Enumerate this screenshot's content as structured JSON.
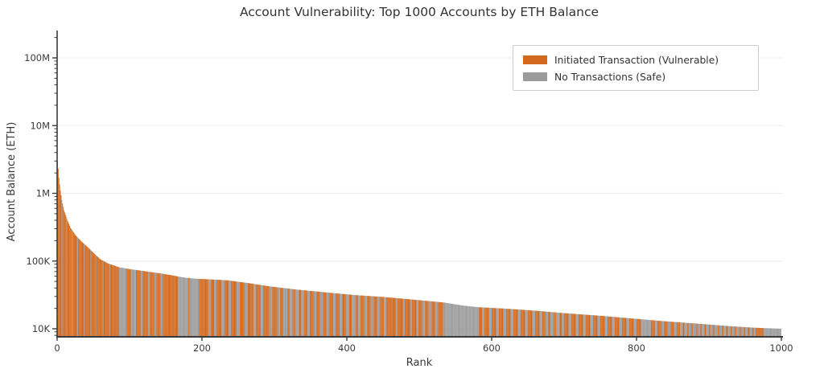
{
  "chart_data": {
    "type": "bar",
    "title": "Account Vulnerability: Top 1000 Accounts by ETH Balance",
    "xlabel": "Rank",
    "ylabel": "Account Balance (ETH)",
    "y_scale": "log",
    "xlim": [
      0,
      1000
    ],
    "ylim": [
      8000,
      250000000
    ],
    "n_bars": 1000,
    "grid": true,
    "grid_color": "#efefef",
    "axis_color": "#3a3a3a",
    "text_color": "#333333",
    "x_ticks": [
      0,
      200,
      400,
      600,
      800,
      1000
    ],
    "y_ticks": [
      {
        "value": 10000,
        "label": "10K"
      },
      {
        "value": 100000,
        "label": "100K"
      },
      {
        "value": 1000000,
        "label": "1M"
      },
      {
        "value": 10000000,
        "label": "10M"
      },
      {
        "value": 100000000,
        "label": "100M"
      }
    ],
    "legend": [
      {
        "label": "Initiated Transaction (Vulnerable)",
        "color": "#D2691E"
      },
      {
        "label": "No Transactions (Safe)",
        "color": "#9C9C9C"
      }
    ],
    "legend_position": "upper right",
    "envelope_points": [
      [
        0,
        3000000
      ],
      [
        1,
        2300000
      ],
      [
        2,
        1700000
      ],
      [
        3,
        1350000
      ],
      [
        4,
        1100000
      ],
      [
        6,
        800000
      ],
      [
        9,
        560000
      ],
      [
        13,
        420000
      ],
      [
        18,
        310000
      ],
      [
        25,
        240000
      ],
      [
        33,
        195000
      ],
      [
        42,
        160000
      ],
      [
        52,
        125000
      ],
      [
        60,
        105000
      ],
      [
        70,
        92000
      ],
      [
        85,
        81000
      ],
      [
        100,
        76000
      ],
      [
        120,
        71000
      ],
      [
        145,
        65000
      ],
      [
        160,
        61000
      ],
      [
        175,
        57000
      ],
      [
        190,
        55000
      ],
      [
        235,
        52000
      ],
      [
        265,
        47000
      ],
      [
        295,
        42000
      ],
      [
        330,
        38000
      ],
      [
        370,
        34500
      ],
      [
        410,
        31500
      ],
      [
        450,
        29500
      ],
      [
        490,
        27000
      ],
      [
        533,
        24500
      ],
      [
        560,
        22000
      ],
      [
        582,
        20800
      ],
      [
        620,
        19800
      ],
      [
        660,
        18500
      ],
      [
        700,
        17000
      ],
      [
        745,
        15700
      ],
      [
        790,
        14300
      ],
      [
        835,
        13000
      ],
      [
        880,
        12000
      ],
      [
        925,
        11000
      ],
      [
        960,
        10400
      ],
      [
        999,
        10000
      ]
    ],
    "vulnerable_runs": [
      [
        0,
        6
      ],
      [
        7,
        13
      ],
      [
        14,
        20
      ],
      [
        21,
        28
      ],
      [
        29,
        37
      ],
      [
        38,
        46
      ],
      [
        47,
        54
      ],
      [
        55,
        63
      ],
      [
        64,
        72
      ],
      [
        73,
        85
      ],
      [
        96,
        102
      ],
      [
        109,
        115
      ],
      [
        118,
        125
      ],
      [
        128,
        134
      ],
      [
        137,
        143
      ],
      [
        146,
        167
      ],
      [
        181,
        183
      ],
      [
        196,
        209
      ],
      [
        212,
        217
      ],
      [
        220,
        227
      ],
      [
        231,
        237
      ],
      [
        240,
        248
      ],
      [
        252,
        259
      ],
      [
        263,
        271
      ],
      [
        275,
        281
      ],
      [
        285,
        293
      ],
      [
        297,
        304
      ],
      [
        308,
        312
      ],
      [
        318,
        321
      ],
      [
        326,
        329
      ],
      [
        334,
        337
      ],
      [
        341,
        345
      ],
      [
        349,
        354
      ],
      [
        358,
        363
      ],
      [
        367,
        372
      ],
      [
        376,
        381
      ],
      [
        385,
        390
      ],
      [
        394,
        399
      ],
      [
        403,
        407
      ],
      [
        412,
        415
      ],
      [
        419,
        424
      ],
      [
        428,
        433
      ],
      [
        437,
        442
      ],
      [
        446,
        451
      ],
      [
        455,
        468
      ],
      [
        470,
        478
      ],
      [
        480,
        488
      ],
      [
        490,
        496
      ],
      [
        499,
        504
      ],
      [
        508,
        513
      ],
      [
        517,
        522
      ],
      [
        526,
        533
      ],
      [
        582,
        587
      ],
      [
        590,
        596
      ],
      [
        600,
        606
      ],
      [
        610,
        616
      ],
      [
        620,
        626
      ],
      [
        630,
        636
      ],
      [
        640,
        646
      ],
      [
        650,
        656
      ],
      [
        660,
        666
      ],
      [
        670,
        674
      ],
      [
        678,
        681
      ],
      [
        686,
        689
      ],
      [
        694,
        697
      ],
      [
        700,
        706
      ],
      [
        710,
        716
      ],
      [
        720,
        726
      ],
      [
        730,
        736
      ],
      [
        740,
        746
      ],
      [
        750,
        756
      ],
      [
        760,
        766
      ],
      [
        770,
        776
      ],
      [
        780,
        786
      ],
      [
        790,
        796
      ],
      [
        800,
        806
      ],
      [
        820,
        825
      ],
      [
        829,
        834
      ],
      [
        838,
        843
      ],
      [
        847,
        852
      ],
      [
        856,
        860
      ],
      [
        864,
        866
      ],
      [
        870,
        872
      ],
      [
        876,
        878
      ],
      [
        882,
        884
      ],
      [
        888,
        890
      ],
      [
        894,
        896
      ],
      [
        900,
        902
      ],
      [
        906,
        908
      ],
      [
        912,
        914
      ],
      [
        918,
        920
      ],
      [
        924,
        926
      ],
      [
        930,
        932
      ],
      [
        936,
        938
      ],
      [
        942,
        944
      ],
      [
        948,
        950
      ],
      [
        954,
        956
      ],
      [
        960,
        962
      ],
      [
        965,
        975
      ]
    ]
  }
}
